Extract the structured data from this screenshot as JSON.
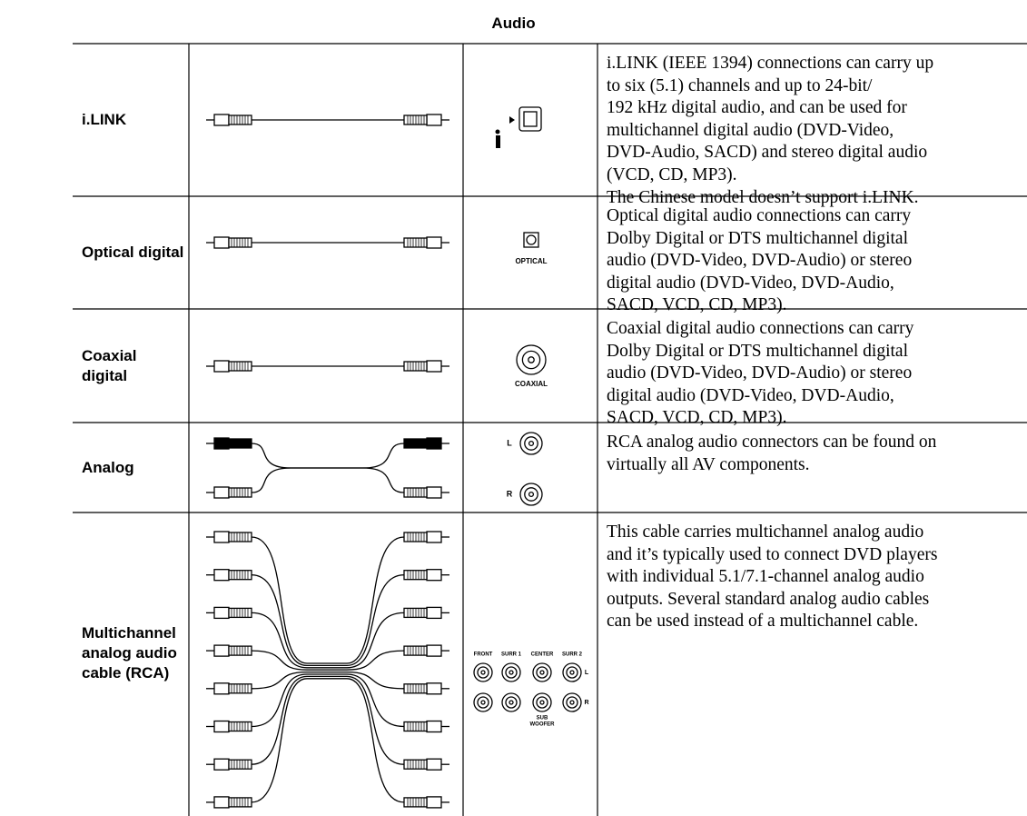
{
  "title": "Audio",
  "rows": [
    {
      "label": [
        "i.LINK"
      ],
      "jack_labels": [],
      "description": [
        "i.LINK (IEEE 1394) connections can carry up",
        "to six (5.1) channels and up to 24-bit/",
        "192 kHz digital audio, and can be used for",
        "multichannel digital audio (DVD-Video,",
        "DVD-Audio, SACD) and stereo digital audio",
        "(VCD, CD, MP3).",
        "The Chinese model doesn’t support i.LINK."
      ]
    },
    {
      "label": [
        "Optical digital"
      ],
      "jack_labels": [
        "OPTICAL"
      ],
      "description": [
        "Optical digital audio connections can carry",
        "Dolby Digital or DTS multichannel digital",
        "audio (DVD-Video, DVD-Audio) or stereo",
        "digital audio (DVD-Video, DVD-Audio,",
        "SACD, VCD, CD, MP3)."
      ]
    },
    {
      "label": [
        "Coaxial digital"
      ],
      "jack_labels": [
        "COAXIAL"
      ],
      "description": [
        "Coaxial digital audio connections can carry",
        "Dolby Digital or DTS multichannel digital",
        "audio (DVD-Video, DVD-Audio) or stereo",
        "digital audio (DVD-Video, DVD-Audio,",
        "SACD, VCD, CD, MP3)."
      ]
    },
    {
      "label": [
        "Analog"
      ],
      "jack_labels": [
        "L",
        "R"
      ],
      "description": [
        "RCA analog audio connectors can be found on",
        "virtually all AV components."
      ]
    },
    {
      "label": [
        "Multichannel",
        "analog audio",
        "cable (RCA)"
      ],
      "jack_labels": [
        "FRONT",
        "SURR 1",
        "CENTER",
        "SURR 2",
        "SUB",
        "WOOFER",
        "L",
        "R"
      ],
      "description": [
        "This cable carries multichannel analog audio",
        "and it’s typically used to connect DVD players",
        "with individual 5.1/7.1-channel analog audio",
        "outputs. Several standard analog audio cables",
        "can be used instead of a multichannel cable."
      ]
    }
  ]
}
